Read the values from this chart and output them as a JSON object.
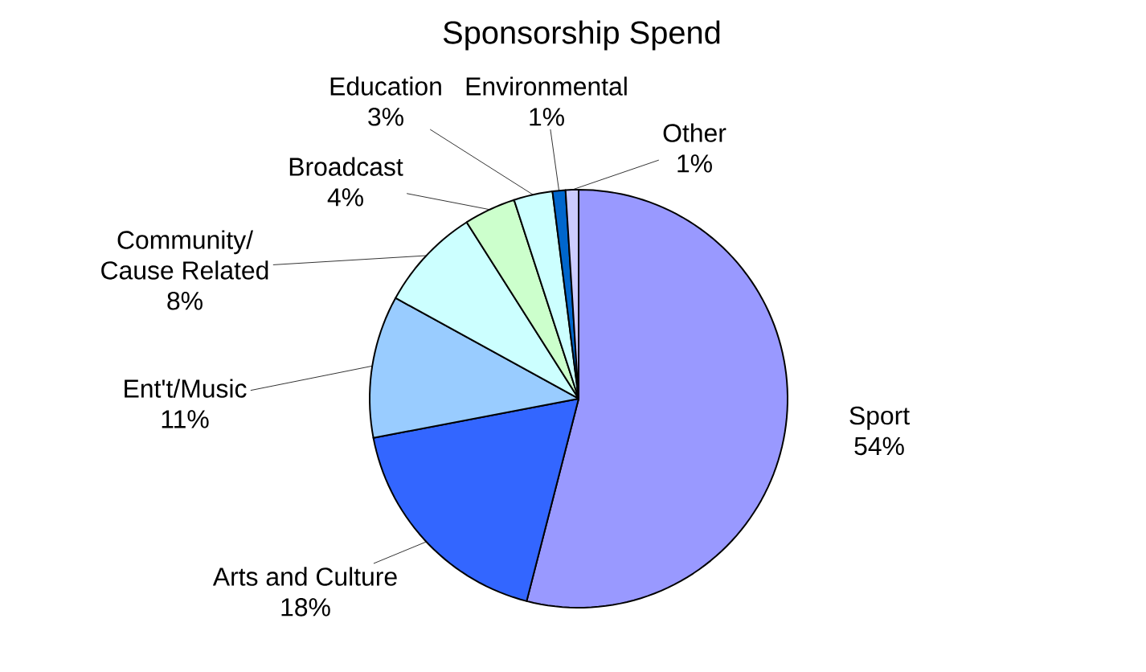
{
  "chart_data": {
    "type": "pie",
    "title": "Sponsorship Spend",
    "categories": [
      "Sport",
      "Arts and Culture",
      "Ent't/Music",
      "Community/ Cause Related",
      "Broadcast",
      "Education",
      "Environmental",
      "Other"
    ],
    "values": [
      54,
      18,
      11,
      8,
      4,
      3,
      1,
      1
    ],
    "value_labels": [
      "54%",
      "18%",
      "11%",
      "8%",
      "4%",
      "3%",
      "1%",
      "1%"
    ],
    "colors": [
      "#9999ff",
      "#3366ff",
      "#99ccff",
      "#ccffff",
      "#ccffcc",
      "#ccffff",
      "#0066cc",
      "#ccccff"
    ]
  }
}
